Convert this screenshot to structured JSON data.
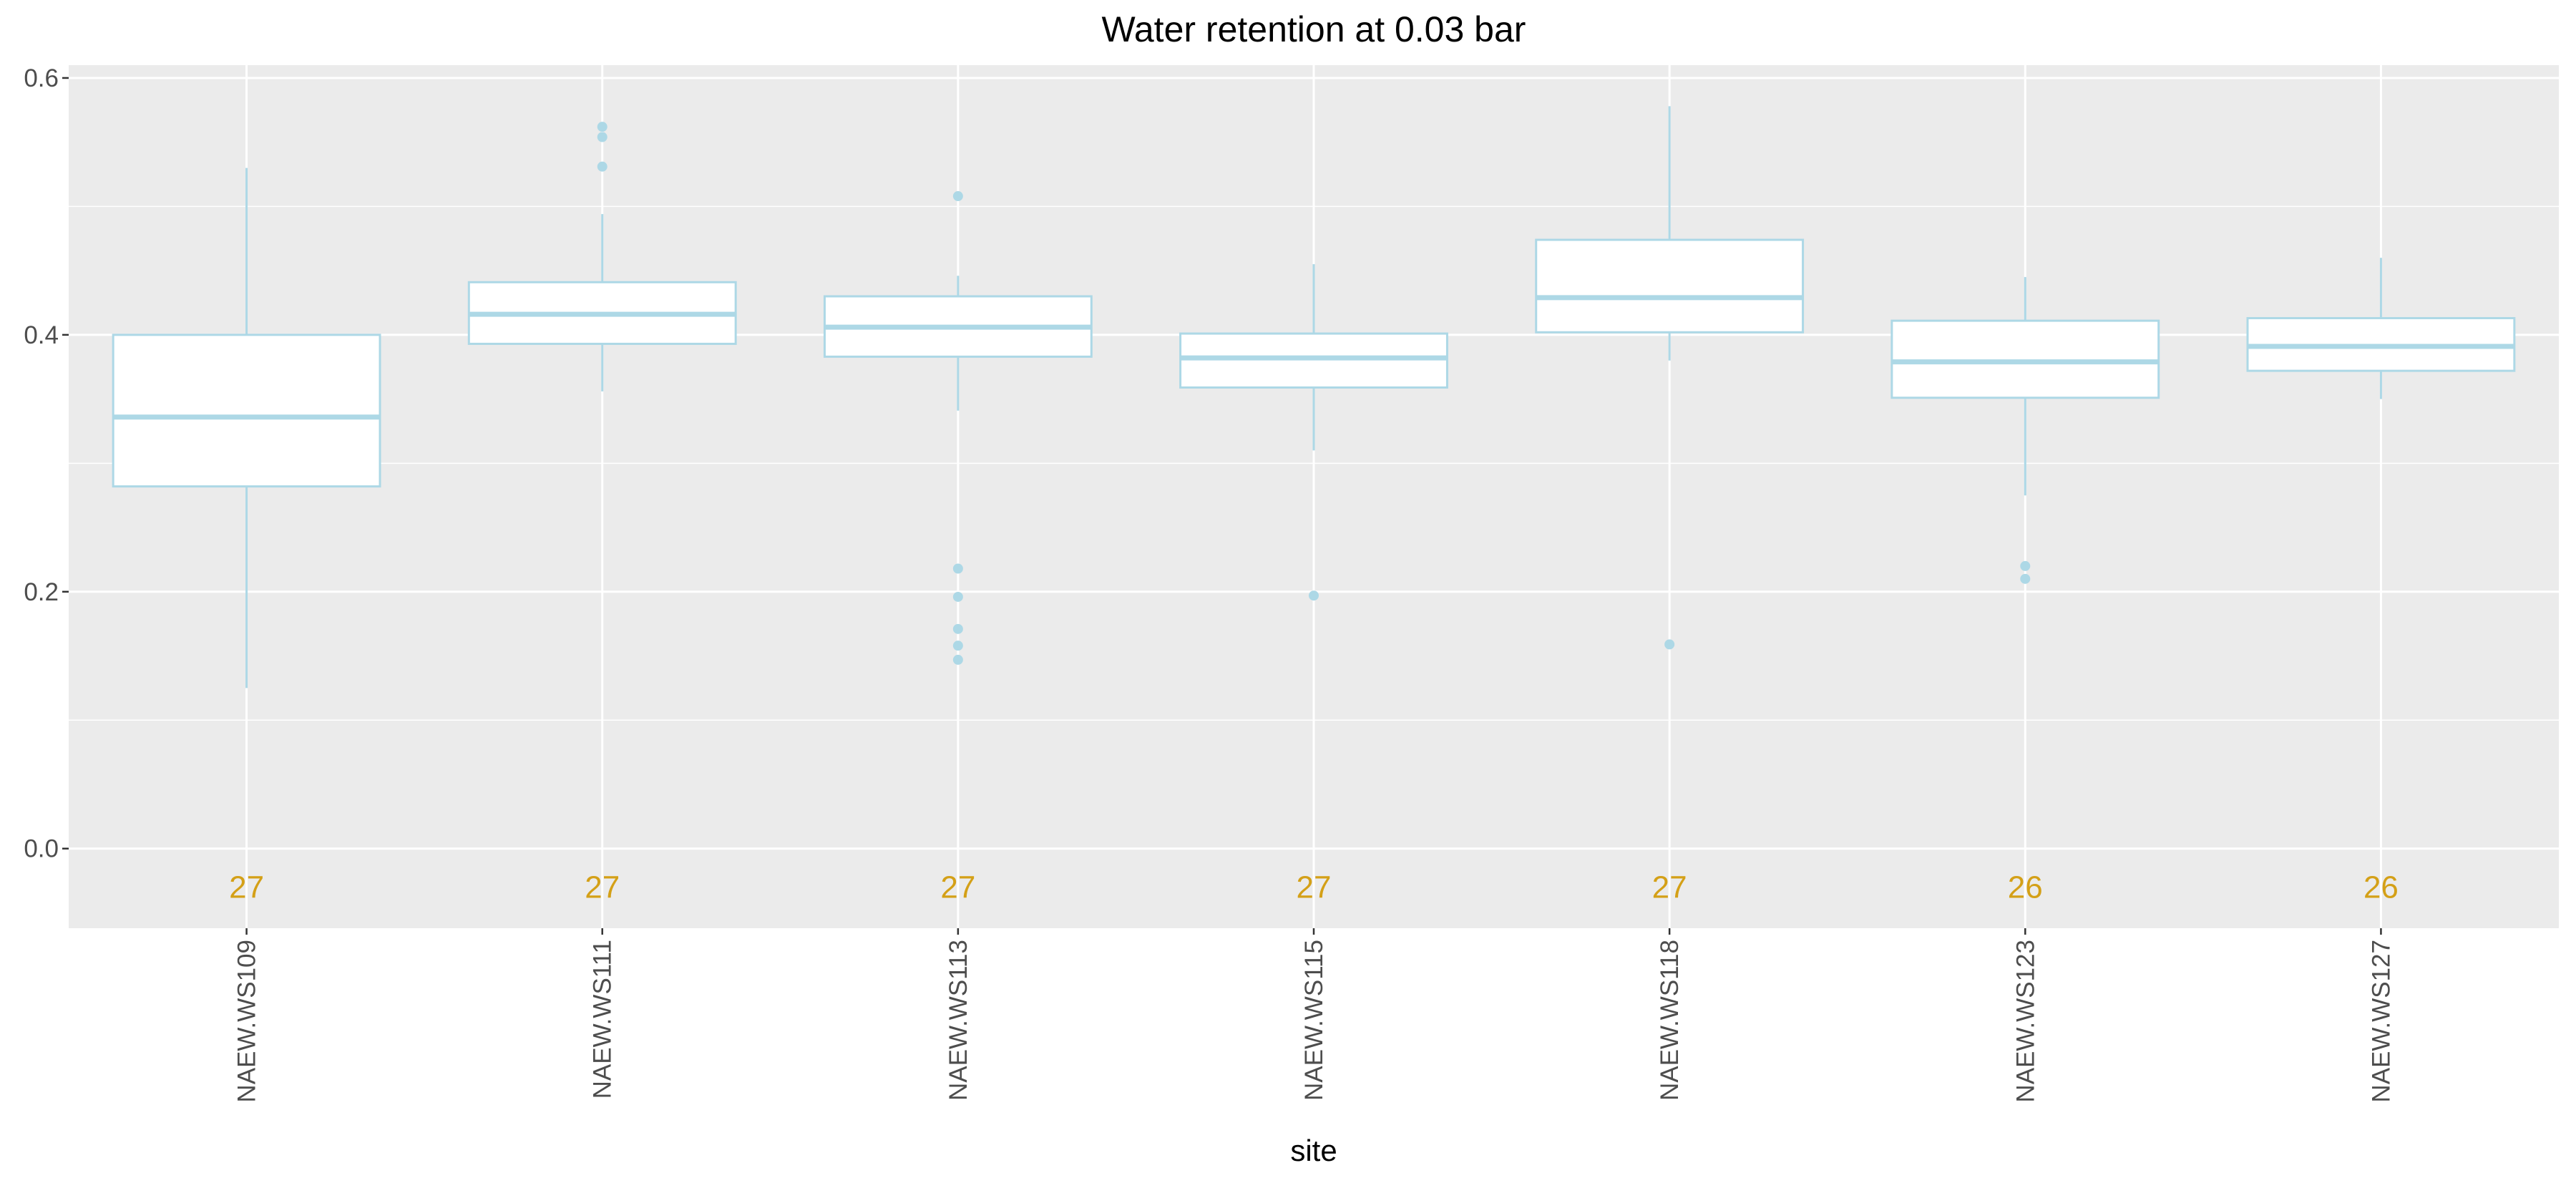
{
  "chart_data": {
    "type": "boxplot",
    "title": "Water retention at 0.03 bar",
    "xlabel": "site",
    "ylabel": "",
    "ylim": [
      -0.062,
      0.61
    ],
    "yticks": [
      0.0,
      0.2,
      0.4,
      0.6
    ],
    "ytick_labels": [
      "0.0",
      "0.2",
      "0.4",
      "0.6"
    ],
    "grid": true,
    "legend": "none",
    "categories": [
      "NAEW.WS109",
      "NAEW.WS111",
      "NAEW.WS113",
      "NAEW.WS115",
      "NAEW.WS118",
      "NAEW.WS123",
      "NAEW.WS127"
    ],
    "boxes": [
      {
        "whisker_low": 0.125,
        "q1": 0.282,
        "median": 0.336,
        "q3": 0.4,
        "whisker_high": 0.53,
        "outliers": []
      },
      {
        "whisker_low": 0.356,
        "q1": 0.393,
        "median": 0.416,
        "q3": 0.441,
        "whisker_high": 0.494,
        "outliers": [
          0.531,
          0.554,
          0.562
        ]
      },
      {
        "whisker_low": 0.341,
        "q1": 0.383,
        "median": 0.406,
        "q3": 0.43,
        "whisker_high": 0.446,
        "outliers": [
          0.508,
          0.218,
          0.196,
          0.171,
          0.158,
          0.147
        ]
      },
      {
        "whisker_low": 0.31,
        "q1": 0.359,
        "median": 0.382,
        "q3": 0.401,
        "whisker_high": 0.455,
        "outliers": [
          0.197
        ]
      },
      {
        "whisker_low": 0.38,
        "q1": 0.402,
        "median": 0.429,
        "q3": 0.474,
        "whisker_high": 0.578,
        "outliers": [
          0.159
        ]
      },
      {
        "whisker_low": 0.275,
        "q1": 0.351,
        "median": 0.379,
        "q3": 0.411,
        "whisker_high": 0.445,
        "outliers": [
          0.22,
          0.21
        ]
      },
      {
        "whisker_low": 0.35,
        "q1": 0.372,
        "median": 0.391,
        "q3": 0.413,
        "whisker_high": 0.46,
        "outliers": []
      }
    ],
    "counts": [
      "27",
      "27",
      "27",
      "27",
      "27",
      "26",
      "26"
    ],
    "count_value_y": -0.03
  },
  "colors": {
    "panel": "#ebebeb",
    "grid": "#ffffff",
    "box_stroke": "#add8e6",
    "box_fill": "#ffffff",
    "count_text": "#d4a017"
  }
}
